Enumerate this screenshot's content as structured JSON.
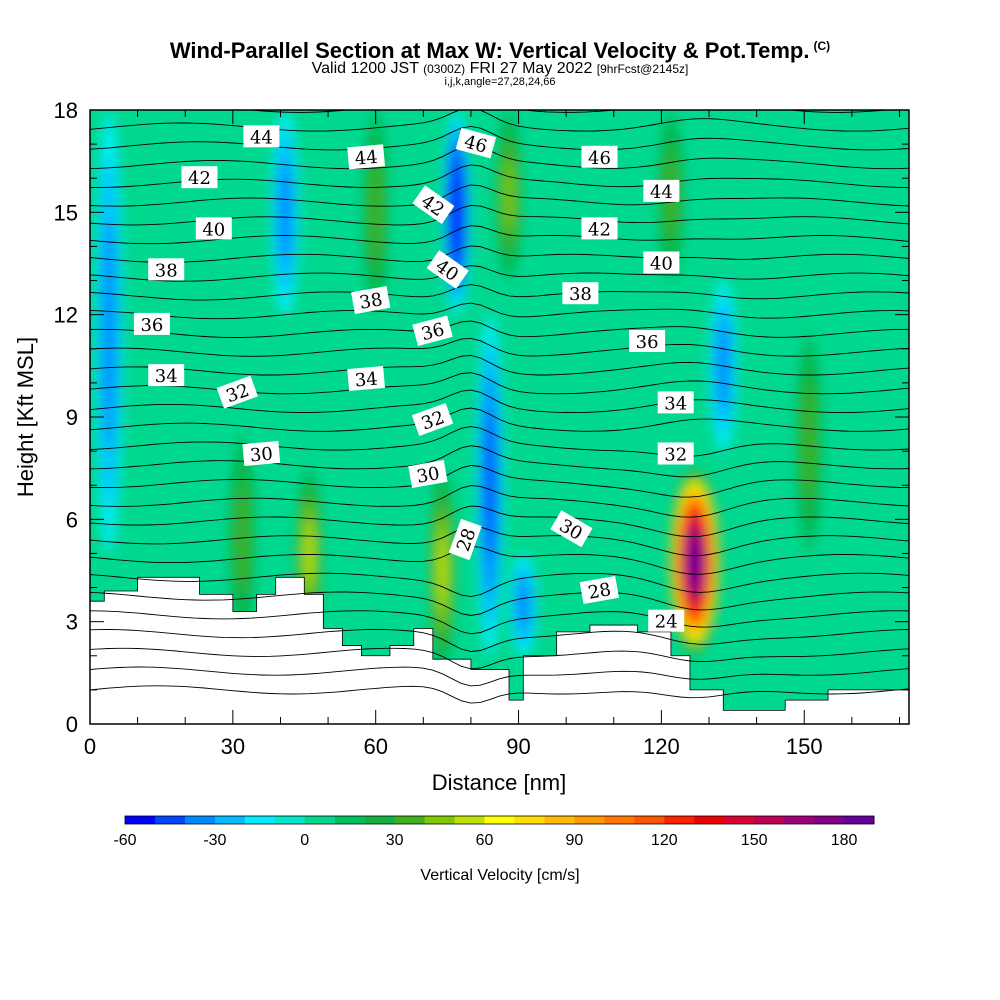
{
  "title": {
    "main": "Wind-Parallel Section at Max W: Vertical Velocity & Pot.Temp.",
    "copyright": "(C)",
    "valid_a": "Valid 1200 JST",
    "valid_b": "(0300Z)",
    "valid_c": "FRI 27 May 2022",
    "valid_d": "[9hrFcst@2145z]",
    "indices": "i,j,k,angle=27,28,24,66"
  },
  "chart_data": {
    "type": "heatmap",
    "xlabel": "Distance [nm]",
    "ylabel": "Height [Kft MSL]",
    "xlim": [
      0,
      172
    ],
    "ylim": [
      0,
      18
    ],
    "x_ticks": [
      "0",
      "30",
      "60",
      "90",
      "120",
      "150"
    ],
    "y_ticks": [
      "0",
      "3",
      "6",
      "9",
      "12",
      "15",
      "18"
    ],
    "colorbar": {
      "label": "Vertical Velocity [cm/s]",
      "range": [
        -60,
        190
      ],
      "step": 10,
      "tick_labels": [
        "-60",
        "-30",
        "0",
        "30",
        "60",
        "90",
        "120",
        "150",
        "180"
      ],
      "colors": [
        "#0000ff",
        "#0044ff",
        "#0088ff",
        "#00bbff",
        "#00eeff",
        "#00e8cc",
        "#00d890",
        "#00c060",
        "#10b040",
        "#40b020",
        "#80c800",
        "#c0e000",
        "#ffff00",
        "#ffdd00",
        "#ffbb00",
        "#ff9900",
        "#ff7700",
        "#ff5500",
        "#ff2200",
        "#ee0000",
        "#dd0033",
        "#c00055",
        "#a00077",
        "#800088",
        "#660099"
      ]
    },
    "vertical_velocity_features": [
      {
        "kind": "updraft",
        "x": 127,
        "base": 2.0,
        "top": 7.5,
        "peak": 190
      },
      {
        "kind": "updraft",
        "x": 32,
        "base": 2.5,
        "top": 8.5,
        "peak": 35
      },
      {
        "kind": "updraft",
        "x": 46,
        "base": 2.5,
        "top": 7.5,
        "peak": 55
      },
      {
        "kind": "updraft",
        "x": 74,
        "base": 1.5,
        "top": 7.5,
        "peak": 55
      },
      {
        "kind": "updraft",
        "x": 60,
        "base": 12.0,
        "top": 18.0,
        "peak": 35
      },
      {
        "kind": "updraft",
        "x": 88,
        "base": 13.0,
        "top": 18.0,
        "peak": 45
      },
      {
        "kind": "updraft",
        "x": 122,
        "base": 13.0,
        "top": 18.0,
        "peak": 30
      },
      {
        "kind": "updraft",
        "x": 151,
        "base": 5.0,
        "top": 11.5,
        "peak": 30
      },
      {
        "kind": "downdraft",
        "x": 77,
        "base": 12.0,
        "top": 18.0,
        "peak": -60
      },
      {
        "kind": "downdraft",
        "x": 84,
        "base": 2.0,
        "top": 12.0,
        "peak": -45
      },
      {
        "kind": "downdraft",
        "x": 91,
        "base": 2.0,
        "top": 5.0,
        "peak": -35
      },
      {
        "kind": "downdraft",
        "x": 4,
        "base": 5.0,
        "top": 18.0,
        "peak": -30
      },
      {
        "kind": "downdraft",
        "x": 41,
        "base": 12.0,
        "top": 18.0,
        "peak": -35
      },
      {
        "kind": "downdraft",
        "x": 133,
        "base": 8.0,
        "top": 13.0,
        "peak": -30
      }
    ],
    "terrain_kft": [
      [
        0,
        3.6
      ],
      [
        3,
        3.9
      ],
      [
        10,
        4.3
      ],
      [
        23,
        3.8
      ],
      [
        30,
        3.3
      ],
      [
        35,
        3.8
      ],
      [
        39,
        4.3
      ],
      [
        45,
        3.8
      ],
      [
        49,
        2.8
      ],
      [
        53,
        2.3
      ],
      [
        57,
        2.0
      ],
      [
        63,
        2.3
      ],
      [
        68,
        2.8
      ],
      [
        72,
        1.9
      ],
      [
        80,
        1.6
      ],
      [
        88,
        0.7
      ],
      [
        91,
        2.0
      ],
      [
        98,
        2.7
      ],
      [
        105,
        2.9
      ],
      [
        115,
        2.7
      ],
      [
        122,
        2.0
      ],
      [
        126,
        1.0
      ],
      [
        133,
        0.4
      ],
      [
        146,
        0.7
      ],
      [
        155,
        1.0
      ],
      [
        172,
        1.0
      ]
    ],
    "theta_contour_labels": [
      {
        "text": "44",
        "x": 36,
        "y": 17.2,
        "angle": 0
      },
      {
        "text": "44",
        "x": 58,
        "y": 16.6,
        "angle": -5
      },
      {
        "text": "46",
        "x": 81,
        "y": 17.0,
        "angle": 15
      },
      {
        "text": "46",
        "x": 107,
        "y": 16.6,
        "angle": 0
      },
      {
        "text": "44",
        "x": 120,
        "y": 15.6,
        "angle": 0
      },
      {
        "text": "42",
        "x": 23,
        "y": 16.0,
        "angle": 0
      },
      {
        "text": "42",
        "x": 72,
        "y": 15.2,
        "angle": 35
      },
      {
        "text": "42",
        "x": 107,
        "y": 14.5,
        "angle": 0
      },
      {
        "text": "40",
        "x": 26,
        "y": 14.5,
        "angle": 0
      },
      {
        "text": "40",
        "x": 75,
        "y": 13.3,
        "angle": 35
      },
      {
        "text": "40",
        "x": 120,
        "y": 13.5,
        "angle": 0
      },
      {
        "text": "38",
        "x": 16,
        "y": 13.3,
        "angle": 0
      },
      {
        "text": "38",
        "x": 59,
        "y": 12.4,
        "angle": -10
      },
      {
        "text": "38",
        "x": 103,
        "y": 12.6,
        "angle": 0
      },
      {
        "text": "36",
        "x": 13,
        "y": 11.7,
        "angle": 0
      },
      {
        "text": "36",
        "x": 72,
        "y": 11.5,
        "angle": -15
      },
      {
        "text": "36",
        "x": 117,
        "y": 11.2,
        "angle": 0
      },
      {
        "text": "34",
        "x": 16,
        "y": 10.2,
        "angle": 0
      },
      {
        "text": "34",
        "x": 58,
        "y": 10.1,
        "angle": -5
      },
      {
        "text": "34",
        "x": 123,
        "y": 9.4,
        "angle": 0
      },
      {
        "text": "32",
        "x": 31,
        "y": 9.7,
        "angle": -20
      },
      {
        "text": "32",
        "x": 72,
        "y": 8.9,
        "angle": -20
      },
      {
        "text": "32",
        "x": 123,
        "y": 7.9,
        "angle": 0
      },
      {
        "text": "30",
        "x": 36,
        "y": 7.9,
        "angle": -5
      },
      {
        "text": "30",
        "x": 71,
        "y": 7.3,
        "angle": -10
      },
      {
        "text": "30",
        "x": 101,
        "y": 5.7,
        "angle": 30
      },
      {
        "text": "28",
        "x": 79,
        "y": 5.4,
        "angle": -70
      },
      {
        "text": "28",
        "x": 107,
        "y": 3.9,
        "angle": -10
      },
      {
        "text": "24",
        "x": 121,
        "y": 3.0,
        "angle": 0
      }
    ]
  }
}
